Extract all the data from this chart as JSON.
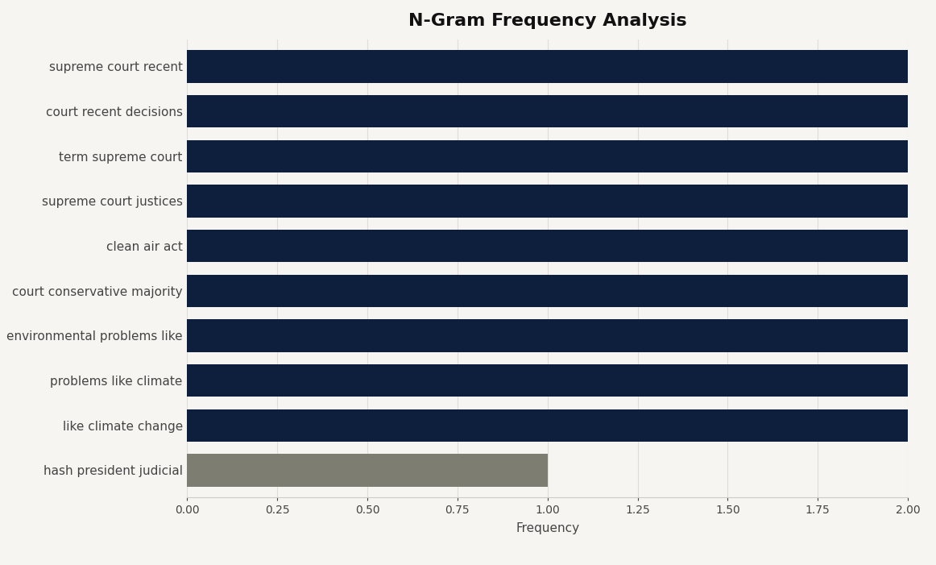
{
  "title": "N-Gram Frequency Analysis",
  "categories": [
    "hash president judicial",
    "like climate change",
    "problems like climate",
    "environmental problems like",
    "court conservative majority",
    "clean air act",
    "supreme court justices",
    "term supreme court",
    "court recent decisions",
    "supreme court recent"
  ],
  "values": [
    1.0,
    2.0,
    2.0,
    2.0,
    2.0,
    2.0,
    2.0,
    2.0,
    2.0,
    2.0
  ],
  "bar_colors": [
    "#7d7d72",
    "#0d1f3c",
    "#0d1f3c",
    "#0d1f3c",
    "#0d1f3c",
    "#0d1f3c",
    "#0d1f3c",
    "#0d1f3c",
    "#0d1f3c",
    "#0d1f3c"
  ],
  "xlabel": "Frequency",
  "xlim": [
    0,
    2.0
  ],
  "xticks": [
    0.0,
    0.25,
    0.5,
    0.75,
    1.0,
    1.25,
    1.5,
    1.75,
    2.0
  ],
  "xtick_labels": [
    "0.00",
    "0.25",
    "0.50",
    "0.75",
    "1.00",
    "1.25",
    "1.50",
    "1.75",
    "2.00"
  ],
  "background_color": "#f7f5f2",
  "bar_edge_color": "none",
  "title_fontsize": 16,
  "label_fontsize": 11,
  "tick_fontsize": 10,
  "bar_height": 0.72,
  "grid_color": "#e0ddd8",
  "spine_color": "#cccccc"
}
